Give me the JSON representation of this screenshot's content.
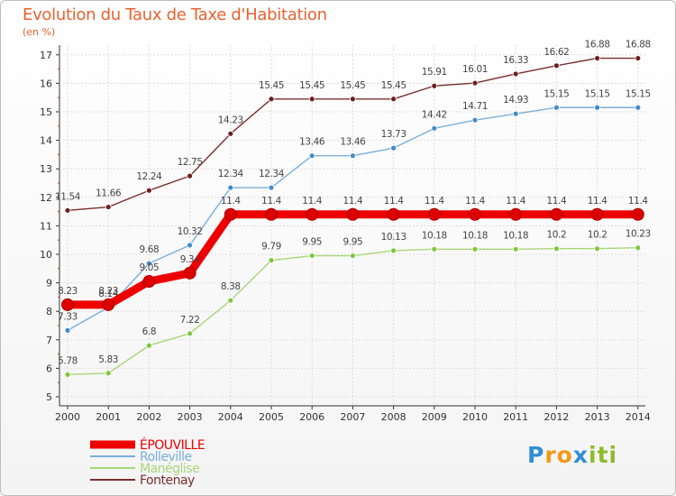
{
  "header": {
    "title": "Evolution du Taux de Taxe d'Habitation",
    "unit": "(en %)"
  },
  "logo": {
    "letters": [
      "P",
      "r",
      "o",
      "x",
      "i",
      "t",
      "i"
    ],
    "colors": [
      "#2f8fd4",
      "#f29a1b",
      "#f29a1b",
      "#2f8fd4",
      "#8dbb2b",
      "#8dbb2b",
      "#8dbb2b"
    ]
  },
  "chart_data": {
    "type": "line",
    "title": "Evolution du Taux de Taxe d'Habitation",
    "ylabel": "(en %)",
    "xlabel": "",
    "x": [
      "2000",
      "2001",
      "2002",
      "2003",
      "2004",
      "2005",
      "2006",
      "2007",
      "2008",
      "2009",
      "2010",
      "2011",
      "2012",
      "2013",
      "2014"
    ],
    "ylim": [
      5,
      17
    ],
    "yticks": [
      5,
      6,
      7,
      8,
      9,
      10,
      11,
      12,
      13,
      14,
      15,
      16,
      17
    ],
    "grid": true,
    "legend_position": "bottom-left",
    "series": [
      {
        "name": "Fontenay",
        "color": "#7a2e2e",
        "marker_color": "#6b1f1f",
        "values": [
          11.54,
          11.66,
          12.24,
          12.75,
          14.23,
          15.45,
          15.45,
          15.45,
          15.45,
          15.91,
          16.01,
          16.33,
          16.62,
          16.88,
          16.88
        ],
        "labels": [
          "11.54",
          "11.66",
          "12.24",
          "12.75",
          "14.23",
          "15.45",
          "15.45",
          "15.45",
          "15.45",
          "15.91",
          "16.01",
          "16.33",
          "16.62",
          "16.88",
          "16.88"
        ]
      },
      {
        "name": "Rolleville",
        "color": "#7aaedb",
        "marker_color": "#3f8ccc",
        "values": [
          7.33,
          8.14,
          9.68,
          10.32,
          12.34,
          12.34,
          13.46,
          13.46,
          13.73,
          14.42,
          14.71,
          14.93,
          15.15,
          15.15,
          15.15
        ],
        "labels": [
          "7.33",
          "8.14",
          "9.68",
          "10.32",
          "12.34",
          "12.34",
          "13.46",
          "13.46",
          "13.73",
          "14.42",
          "14.71",
          "14.93",
          "15.15",
          "15.15",
          "15.15"
        ]
      },
      {
        "name": "Manéglise",
        "color": "#a8d67a",
        "marker_color": "#7ec63f",
        "values": [
          5.78,
          5.83,
          6.8,
          7.22,
          8.38,
          9.79,
          9.95,
          9.95,
          10.13,
          10.18,
          10.18,
          10.18,
          10.2,
          10.2,
          10.23
        ],
        "labels": [
          "5.78",
          "5.83",
          "6.8",
          "7.22",
          "8.38",
          "9.79",
          "9.95",
          "9.95",
          "10.13",
          "10.18",
          "10.18",
          "10.18",
          "10.2",
          "10.2",
          "10.23"
        ]
      },
      {
        "name": "ÉPOUVILLE",
        "color": "#ee0000",
        "marker_color": "#dd0000",
        "values": [
          8.23,
          8.23,
          9.05,
          9.34,
          11.4,
          11.4,
          11.4,
          11.4,
          11.4,
          11.4,
          11.4,
          11.4,
          11.4,
          11.4,
          11.4
        ],
        "labels": [
          "8.23",
          "8.23",
          "9.05",
          "9.34",
          "11.4",
          "11.4",
          "11.4",
          "11.4",
          "11.4",
          "11.4",
          "11.4",
          "11.4",
          "11.4",
          "11.4",
          "11.4"
        ]
      }
    ],
    "legend": [
      "ÉPOUVILLE",
      "Rolleville",
      "Manéglise",
      "Fontenay"
    ]
  }
}
